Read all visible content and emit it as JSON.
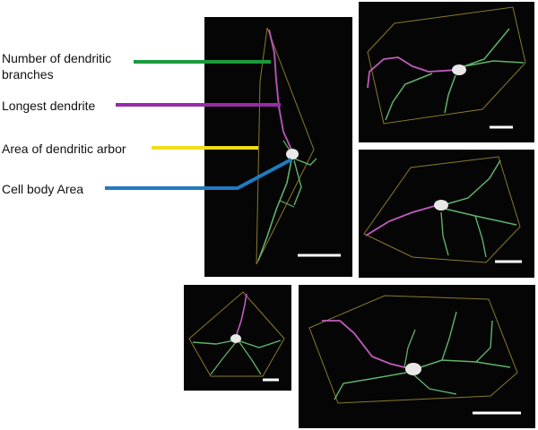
{
  "legend": {
    "items": [
      {
        "label": "Number of dendritic branches",
        "color": "#1a9a3c"
      },
      {
        "label": "Longest dendrite",
        "color": "#9a2aa8"
      },
      {
        "label": "Area of dendritic arbor",
        "color": "#f2dd1a"
      },
      {
        "label": "Cell body Area",
        "color": "#1f7bc1"
      }
    ]
  },
  "colors": {
    "panel_background": "#050505",
    "hull_outline": "#8a7a2a",
    "branch_green": "#5fb36a",
    "dendrite_magenta": "#c25bc0",
    "soma_white": "#e8e8e8",
    "scale_bar": "#ffffff"
  },
  "panels": [
    {
      "id": "main-neuron"
    },
    {
      "id": "neuron-top-right"
    },
    {
      "id": "neuron-middle-right"
    },
    {
      "id": "neuron-bottom-left"
    },
    {
      "id": "neuron-bottom-right"
    }
  ]
}
